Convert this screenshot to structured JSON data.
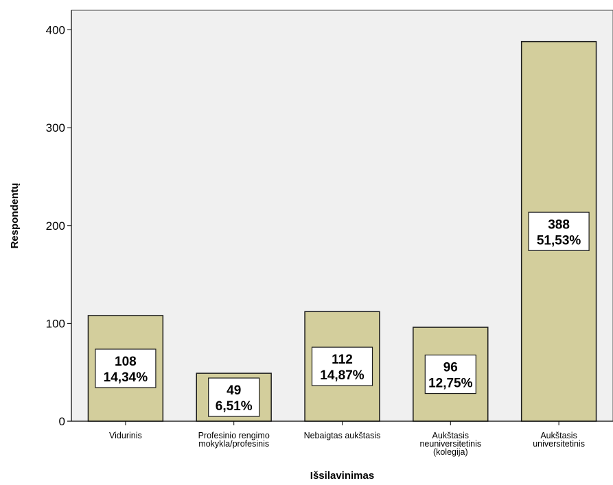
{
  "chart_data": {
    "type": "bar",
    "title": "",
    "xlabel": "Išsilavinimas",
    "ylabel": "Respondentų",
    "categories": [
      [
        "Vidurinis"
      ],
      [
        "Profesinio rengimo",
        "mokykla/profesinis"
      ],
      [
        "Nebaigtas aukštasis"
      ],
      [
        "Aukštasis",
        "neuniversitetinis",
        "(kolegija)"
      ],
      [
        "Aukštasis",
        "universitetinis"
      ]
    ],
    "values": [
      108,
      49,
      112,
      96,
      388
    ],
    "percent_labels": [
      "14,34%",
      "6,51%",
      "14,87%",
      "12,75%",
      "51,53%"
    ],
    "ylim": [
      0,
      420
    ],
    "yticks": [
      0,
      100,
      200,
      300,
      400
    ],
    "grid": false,
    "colors": {
      "bar_fill": "#d3ce9c",
      "bar_stroke": "#1a1a1a",
      "plot_background": "#f0f0f0"
    }
  }
}
